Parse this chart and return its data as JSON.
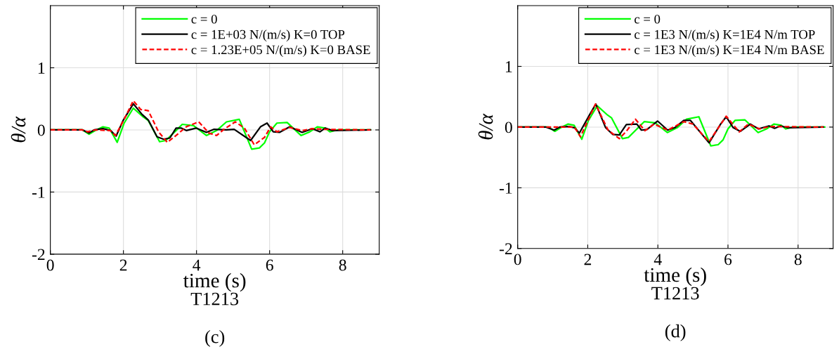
{
  "chart_data": [
    {
      "type": "line",
      "xlabel": "time (s)",
      "ylabel": "θ/α",
      "annotations": [
        "T1213",
        "(c)"
      ],
      "xlim": [
        0,
        9
      ],
      "ylim": [
        -2,
        2
      ],
      "xticks": [
        0,
        2,
        4,
        6,
        8
      ],
      "yticks": [
        -2,
        -1,
        0,
        1
      ],
      "grid": true,
      "legend": "top right",
      "series": [
        {
          "name": "c = 0",
          "color": "#00ff00",
          "line_style": "solid",
          "x": [
            0,
            0.88,
            1.06,
            1.23,
            1.44,
            1.61,
            1.83,
            2.02,
            2.27,
            2.54,
            2.68,
            2.99,
            3.16,
            3.44,
            3.61,
            3.92,
            4.27,
            4.55,
            4.82,
            5.17,
            5.51,
            5.72,
            5.86,
            6.0,
            6.2,
            6.48,
            6.86,
            7.1,
            7.31,
            7.52,
            7.65,
            7.86,
            8.76
          ],
          "values": [
            0,
            0,
            -0.07,
            -0.01,
            0.05,
            0.03,
            -0.2,
            0.11,
            0.35,
            0.21,
            0.15,
            -0.19,
            -0.17,
            -0.01,
            0.09,
            0.07,
            -0.09,
            -0.01,
            0.13,
            0.17,
            -0.31,
            -0.29,
            -0.21,
            -0.03,
            0.11,
            0.12,
            -0.09,
            -0.03,
            0.05,
            0.03,
            -0.03,
            0,
            0
          ]
        },
        {
          "name": "c = 1E+03 N/(m/s) K=0 TOP",
          "color": "#000000",
          "line_style": "solid",
          "x": [
            0,
            0.88,
            1.06,
            1.2,
            1.44,
            1.65,
            1.8,
            1.99,
            2.27,
            2.51,
            2.68,
            2.92,
            3.1,
            3.27,
            3.44,
            3.58,
            3.72,
            3.99,
            4.27,
            4.48,
            4.82,
            5.03,
            5.48,
            5.75,
            5.93,
            6.1,
            6.27,
            6.55,
            6.89,
            7.17,
            7.38,
            7.52,
            7.72,
            8.76
          ],
          "values": [
            0,
            0,
            -0.05,
            0,
            0.02,
            -0.01,
            -0.1,
            0.15,
            0.42,
            0.25,
            0.16,
            -0.11,
            -0.15,
            -0.13,
            0.03,
            0.03,
            -0.01,
            0.03,
            -0.04,
            0.01,
            0,
            0.01,
            -0.17,
            0.05,
            0.11,
            -0.03,
            -0.04,
            0.05,
            -0.04,
            0.02,
            -0.03,
            0.03,
            -0.01,
            0
          ]
        },
        {
          "name": "c = 1.23E+05 N/(m/s) K=0 BASE",
          "color": "#ff0000",
          "line_style": "dashed",
          "x": [
            0,
            0.88,
            1.02,
            1.23,
            1.64,
            1.78,
            2.02,
            2.27,
            2.47,
            2.68,
            2.96,
            3.2,
            3.44,
            3.72,
            4.06,
            4.34,
            4.55,
            4.75,
            5.06,
            5.31,
            5.58,
            5.86,
            6.03,
            6.2,
            6.55,
            6.89,
            7.17,
            7.45,
            8.76
          ],
          "values": [
            0,
            0,
            -0.03,
            0,
            -0.01,
            -0.09,
            0.17,
            0.47,
            0.33,
            0.31,
            -0.03,
            -0.2,
            -0.09,
            0.05,
            0.13,
            -0.05,
            -0.09,
            0.01,
            0.13,
            0.03,
            -0.24,
            -0.12,
            0.05,
            -0.03,
            0.04,
            -0.01,
            0.02,
            0.01,
            0
          ]
        }
      ]
    },
    {
      "type": "line",
      "xlabel": "time (s)",
      "ylabel": "θ/α",
      "annotations": [
        "T1213",
        "(d)"
      ],
      "xlim": [
        0,
        9
      ],
      "ylim": [
        -2,
        2
      ],
      "xticks": [
        0,
        2,
        4,
        6,
        8
      ],
      "yticks": [
        -2,
        -1,
        0,
        1
      ],
      "grid": true,
      "legend": "top right",
      "series": [
        {
          "name": "c = 0",
          "color": "#00ff00",
          "line_style": "solid",
          "x": [
            0,
            0.88,
            1.06,
            1.23,
            1.44,
            1.61,
            1.83,
            2.02,
            2.27,
            2.54,
            2.68,
            2.99,
            3.16,
            3.44,
            3.61,
            3.92,
            4.27,
            4.55,
            4.82,
            5.17,
            5.51,
            5.72,
            5.86,
            6.0,
            6.2,
            6.48,
            6.86,
            7.1,
            7.31,
            7.52,
            7.65,
            7.86,
            8.76
          ],
          "values": [
            0,
            0,
            -0.07,
            -0.01,
            0.05,
            0.03,
            -0.2,
            0.11,
            0.35,
            0.21,
            0.15,
            -0.19,
            -0.17,
            -0.01,
            0.09,
            0.07,
            -0.09,
            -0.01,
            0.13,
            0.17,
            -0.31,
            -0.29,
            -0.21,
            -0.03,
            0.11,
            0.12,
            -0.09,
            -0.03,
            0.05,
            0.03,
            -0.03,
            0,
            0
          ]
        },
        {
          "name": "c = 1E3 N/(m/s) K=1E4 N/m TOP",
          "color": "#000000",
          "line_style": "solid",
          "x": [
            0,
            0.81,
            1.04,
            1.2,
            1.46,
            1.62,
            1.76,
            2.05,
            2.23,
            2.51,
            2.71,
            2.9,
            3.1,
            3.4,
            3.53,
            3.69,
            3.99,
            4.28,
            4.48,
            4.74,
            4.93,
            5.46,
            5.79,
            5.95,
            6.15,
            6.35,
            6.64,
            6.87,
            7.17,
            7.33,
            7.5,
            7.69,
            8.72
          ],
          "values": [
            0,
            0,
            -0.05,
            0,
            0.01,
            -0.01,
            -0.1,
            0.2,
            0.38,
            -0.01,
            -0.12,
            -0.13,
            0.04,
            0.05,
            -0.05,
            -0.04,
            0.1,
            -0.05,
            -0.01,
            0.11,
            0.11,
            -0.26,
            0.05,
            0.17,
            -0.01,
            -0.07,
            0.05,
            -0.03,
            0.02,
            -0.02,
            0.02,
            -0.01,
            0
          ]
        },
        {
          "name": "c = 1E3 N/(m/s) K=1E4 N/m BASE",
          "color": "#ff0000",
          "line_style": "dashed",
          "x": [
            0,
            0.88,
            1.2,
            1.62,
            1.79,
            2.22,
            2.58,
            2.9,
            3.1,
            3.36,
            3.63,
            3.89,
            4.28,
            4.74,
            5.0,
            5.46,
            5.95,
            6.32,
            6.58,
            6.9,
            7.2,
            8.72
          ],
          "values": [
            0,
            0,
            0,
            0,
            -0.16,
            0.38,
            -0.05,
            -0.19,
            -0.07,
            0.13,
            -0.06,
            0.05,
            -0.05,
            0.09,
            0.05,
            -0.24,
            0.18,
            -0.08,
            0.05,
            -0.03,
            0.01,
            0
          ]
        }
      ]
    }
  ]
}
